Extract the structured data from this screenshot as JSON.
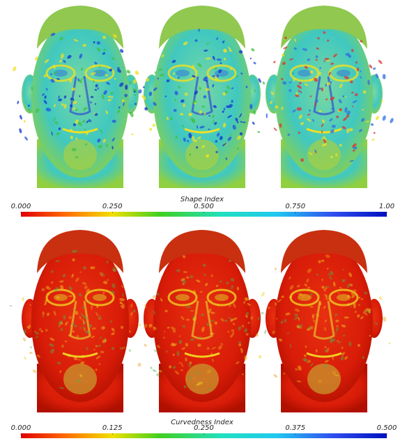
{
  "panels": [
    {
      "colorbar": {
        "title": "Shape Index",
        "lim": [
          0,
          1
        ],
        "ticks": [
          {
            "value": 0,
            "label": "0.000"
          },
          {
            "value": 0.25,
            "label": "0.250"
          },
          {
            "value": 0.5,
            "label": "0.500"
          },
          {
            "value": 0.75,
            "label": "0.750"
          },
          {
            "value": 1,
            "label": "1.00"
          }
        ]
      }
    },
    {
      "colorbar": {
        "title": "Curvedness Index",
        "lim": [
          0,
          0.5
        ],
        "ticks": [
          {
            "value": 0,
            "label": "0.000"
          },
          {
            "value": 0.125,
            "label": "0.125"
          },
          {
            "value": 0.25,
            "label": "0.250"
          },
          {
            "value": 0.375,
            "label": "0.375"
          },
          {
            "value": 0.5,
            "label": "0.500"
          }
        ]
      }
    }
  ]
}
